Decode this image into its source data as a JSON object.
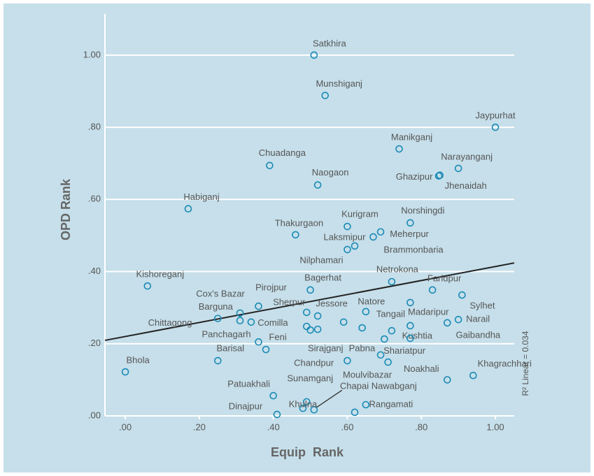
{
  "chart_data": {
    "type": "scatter",
    "x_label": "Equip  Rank",
    "y_label": "OPD Rank",
    "annotation": "R² Linear = 0.034",
    "xlim": [
      -0.055,
      1.051
    ],
    "ylim": [
      0,
      1.114
    ],
    "xticks": [
      {
        "value": 0,
        "label": ".00"
      },
      {
        "value": 0.2,
        "label": ".20"
      },
      {
        "value": 0.4,
        "label": ".40"
      },
      {
        "value": 0.6,
        "label": ".60"
      },
      {
        "value": 0.8,
        "label": ".80"
      },
      {
        "value": 1,
        "label": "1.00"
      }
    ],
    "yticks": [
      {
        "value": 0,
        "label": ".00"
      },
      {
        "value": 0.2,
        "label": ".20"
      },
      {
        "value": 0.4,
        "label": ".40"
      },
      {
        "value": 0.6,
        "label": ".60"
      },
      {
        "value": 0.8,
        "label": ".80"
      },
      {
        "value": 1,
        "label": "1.00"
      }
    ],
    "grid": true,
    "color": "#1a8ab5",
    "fit_line": {
      "intercept": 0.22,
      "slope": 0.194,
      "color": "#222222"
    },
    "x": [
      0.51,
      0.54,
      1.0,
      0.74,
      0.39,
      0.9,
      0.847,
      0.85,
      0.52,
      0.17,
      0.77,
      0.6,
      0.69,
      0.46,
      0.67,
      0.62,
      0.6,
      0.72,
      0.06,
      0.5,
      0.83,
      0.91,
      0.36,
      0.77,
      0.31,
      0.52,
      0.49,
      0.65,
      0.25,
      0.31,
      0.34,
      0.9,
      0.87,
      0.77,
      0.49,
      0.5,
      0.52,
      0.59,
      0.64,
      0.72,
      0.36,
      0.38,
      0.7,
      0.77,
      0.0,
      0.25,
      0.69,
      0.71,
      0.6,
      0.94,
      0.87,
      0.4,
      0.49,
      0.48,
      0.51,
      0.65,
      0.62,
      0.41
    ],
    "y": [
      1.0,
      0.888,
      0.8,
      0.74,
      0.694,
      0.686,
      0.665,
      0.667,
      0.64,
      0.574,
      0.535,
      0.525,
      0.51,
      0.502,
      0.496,
      0.471,
      0.461,
      0.372,
      0.36,
      0.349,
      0.349,
      0.335,
      0.304,
      0.314,
      0.285,
      0.277,
      0.287,
      0.289,
      0.27,
      0.264,
      0.26,
      0.267,
      0.258,
      0.25,
      0.248,
      0.238,
      0.24,
      0.26,
      0.244,
      0.236,
      0.205,
      0.184,
      0.213,
      0.215,
      0.122,
      0.153,
      0.169,
      0.149,
      0.153,
      0.112,
      0.1,
      0.056,
      0.039,
      0.021,
      0.017,
      0.031,
      0.01,
      0.004
    ],
    "point_labels": [
      "Satkhira",
      "Munshiganj",
      "Jaypurhat",
      "Manikganj",
      "Chuadanga",
      "Narayanganj",
      "Ghazipur",
      "Jhenaidah",
      "Naogaon",
      "Habiganj",
      "Norshingdi",
      "Kurigram",
      "Meherpur",
      "Thakurgaon",
      "Laksmipur",
      "Brammonbaria",
      "Nilphamari",
      "Netrokona",
      "Kishoreganj",
      "Bagerhat",
      "Faridpur",
      "Sylhet",
      "Pirojpur",
      null,
      "Cox's Bazar",
      "Jessore",
      "Sherpur",
      "Natore",
      "Barguna",
      "Chittagong",
      "Comilla",
      "Narail",
      "Madaripur",
      "Tangail",
      "Sirajganj",
      null,
      null,
      null,
      null,
      null,
      "Panchagarh",
      "Feni",
      "Kushtia",
      "Gaibandha",
      "Bhola",
      "Barisal",
      "Shariatpur",
      "Chandpur",
      "Pabna",
      "Khagrachhari",
      "Noakhali",
      "Patuakhali",
      "Sunamganj",
      "Dinajpur",
      "Chapai Nawabganj",
      "Rangamati",
      "Moulvibazar",
      "Khulna"
    ]
  }
}
